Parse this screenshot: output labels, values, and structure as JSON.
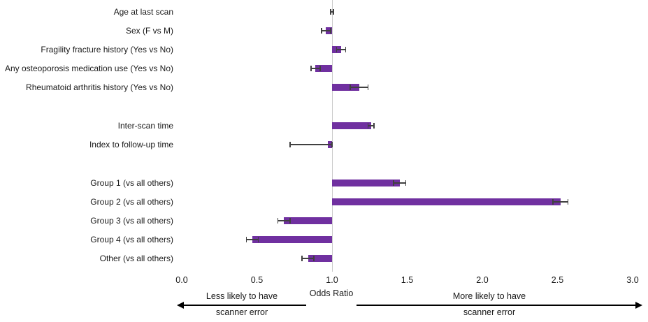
{
  "chart_data": {
    "type": "bar",
    "orientation": "horizontal",
    "title": "",
    "xlabel": "Odds Ratio",
    "xlim": [
      0.0,
      3.0
    ],
    "xticks": [
      "0.0",
      "0.5",
      "1.0",
      "1.5",
      "2.0",
      "2.5",
      "3.0"
    ],
    "baseline": 1.0,
    "bar_color": "#7030a0",
    "error_color": "#404040",
    "baseline_color": "#c9c9c9",
    "legend": "none",
    "grid": false,
    "rows": [
      {
        "label": "Age at last scan",
        "value": 1.0,
        "ci": [
          0.99,
          1.01
        ],
        "gap_after": false
      },
      {
        "label": "Sex (F vs M)",
        "value": 0.96,
        "ci": [
          0.93,
          0.99
        ],
        "gap_after": false
      },
      {
        "label": "Fragility fracture history (Yes vs No)",
        "value": 1.06,
        "ci": [
          1.03,
          1.09
        ],
        "gap_after": false
      },
      {
        "label": "Any osteoporosis medication use (Yes vs No)",
        "value": 0.89,
        "ci": [
          0.86,
          0.92
        ],
        "gap_after": false
      },
      {
        "label": "Rheumatoid arthritis history (Yes vs No)",
        "value": 1.18,
        "ci": [
          1.12,
          1.24
        ],
        "gap_after": true
      },
      {
        "label": "Inter-scan time",
        "value": 1.26,
        "ci": [
          1.24,
          1.28
        ],
        "gap_after": false
      },
      {
        "label": "Index to follow-up time",
        "value": 0.97,
        "ci": [
          0.72,
          1.0
        ],
        "gap_after": true
      },
      {
        "label": "Group 1 (vs all others)",
        "value": 1.45,
        "ci": [
          1.41,
          1.49
        ],
        "gap_after": false
      },
      {
        "label": "Group 2 (vs all others)",
        "value": 2.52,
        "ci": [
          2.47,
          2.57
        ],
        "gap_after": false
      },
      {
        "label": "Group 3 (vs all others)",
        "value": 0.68,
        "ci": [
          0.64,
          0.72
        ],
        "gap_after": false
      },
      {
        "label": "Group 4 (vs all others)",
        "value": 0.47,
        "ci": [
          0.43,
          0.51
        ],
        "gap_after": false
      },
      {
        "label": "Other (vs all others)",
        "value": 0.84,
        "ci": [
          0.8,
          0.88
        ],
        "gap_after": false
      }
    ],
    "annotations": {
      "left_arrow_line1": "Less likely to have",
      "left_arrow_line2": "scanner error",
      "right_arrow_line1": "More likely to have",
      "right_arrow_line2": "scanner error"
    }
  }
}
